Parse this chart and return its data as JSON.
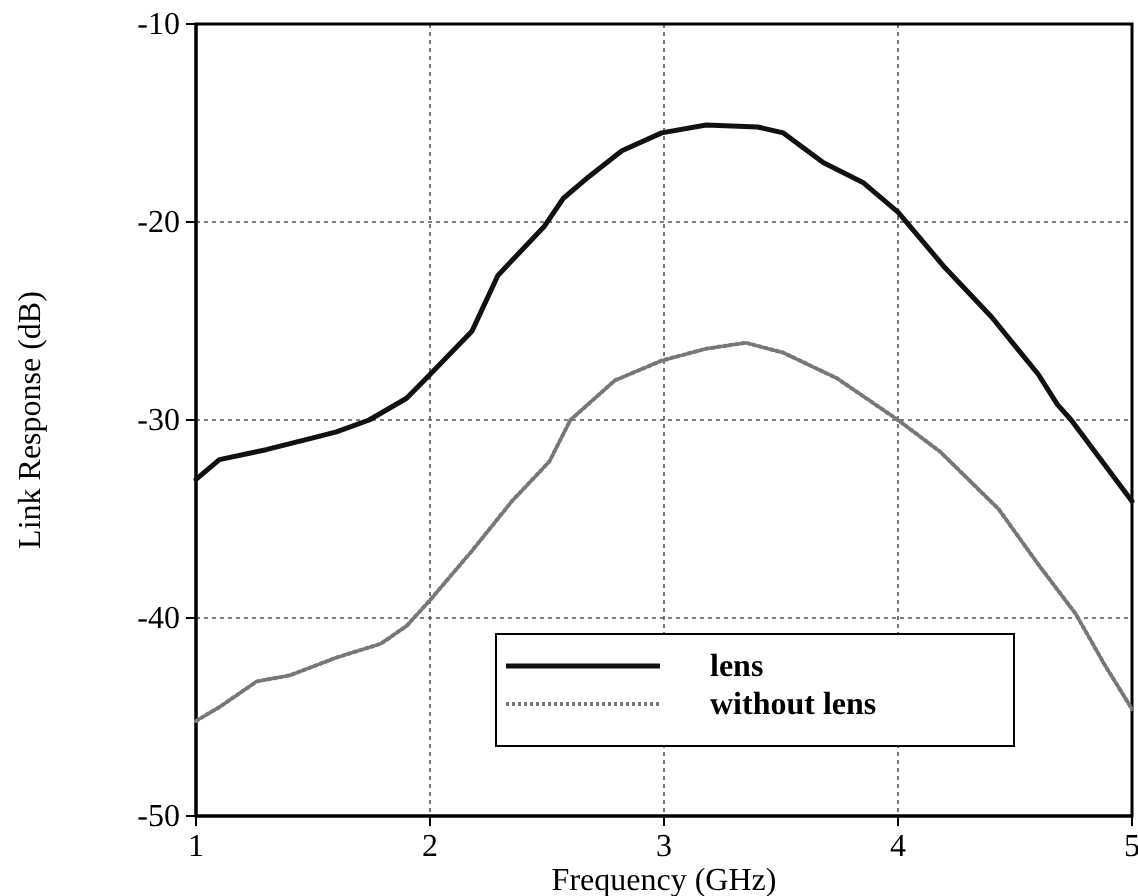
{
  "chart_data": {
    "type": "line",
    "xlabel": "Frequency (GHz)",
    "ylabel": "Link Response (dB)",
    "xlim": [
      1,
      5
    ],
    "xticks": [
      1,
      2,
      3,
      4,
      5
    ],
    "ylim": [
      -50,
      -10
    ],
    "yticks": [
      -50,
      -40,
      -30,
      -20,
      -10
    ],
    "grid": true,
    "legend": "bottom right",
    "marker": "none",
    "series": [
      {
        "name": "lens",
        "color": "#111111",
        "line_style": "solid",
        "x": [
          1,
          1.1,
          1.3,
          1.5,
          1.6,
          1.74,
          1.9,
          2.0,
          2.18,
          2.29,
          2.49,
          2.57,
          2.68,
          2.82,
          2.99,
          3.18,
          3.4,
          3.51,
          3.68,
          3.85,
          4.0,
          4.2,
          4.4,
          4.6,
          4.68,
          4.74,
          5.0
        ],
        "values": [
          -33.0,
          -32.0,
          -31.5,
          -30.9,
          -30.6,
          -30.0,
          -28.9,
          -27.7,
          -25.5,
          -22.7,
          -20.2,
          -18.8,
          -17.7,
          -16.4,
          -15.5,
          -15.1,
          -15.2,
          -15.5,
          -17.0,
          -18.0,
          -19.5,
          -22.3,
          -24.8,
          -27.7,
          -29.2,
          -30.0,
          -34.1
        ]
      },
      {
        "name": "without lens",
        "color": "#777777",
        "line_style": "dotted",
        "x": [
          1,
          1.1,
          1.26,
          1.4,
          1.6,
          1.79,
          1.9,
          2.0,
          2.18,
          2.35,
          2.51,
          2.6,
          2.79,
          2.99,
          3.18,
          3.35,
          3.51,
          3.74,
          4.0,
          4.18,
          4.43,
          4.6,
          4.76,
          4.88,
          5.0
        ],
        "values": [
          -45.2,
          -44.5,
          -43.2,
          -42.9,
          -42.0,
          -41.3,
          -40.4,
          -39.1,
          -36.6,
          -34.1,
          -32.1,
          -30.0,
          -28.0,
          -27.0,
          -26.4,
          -26.1,
          -26.6,
          -27.9,
          -30.0,
          -31.6,
          -34.5,
          -37.3,
          -39.8,
          -42.3,
          -44.6
        ]
      }
    ]
  }
}
